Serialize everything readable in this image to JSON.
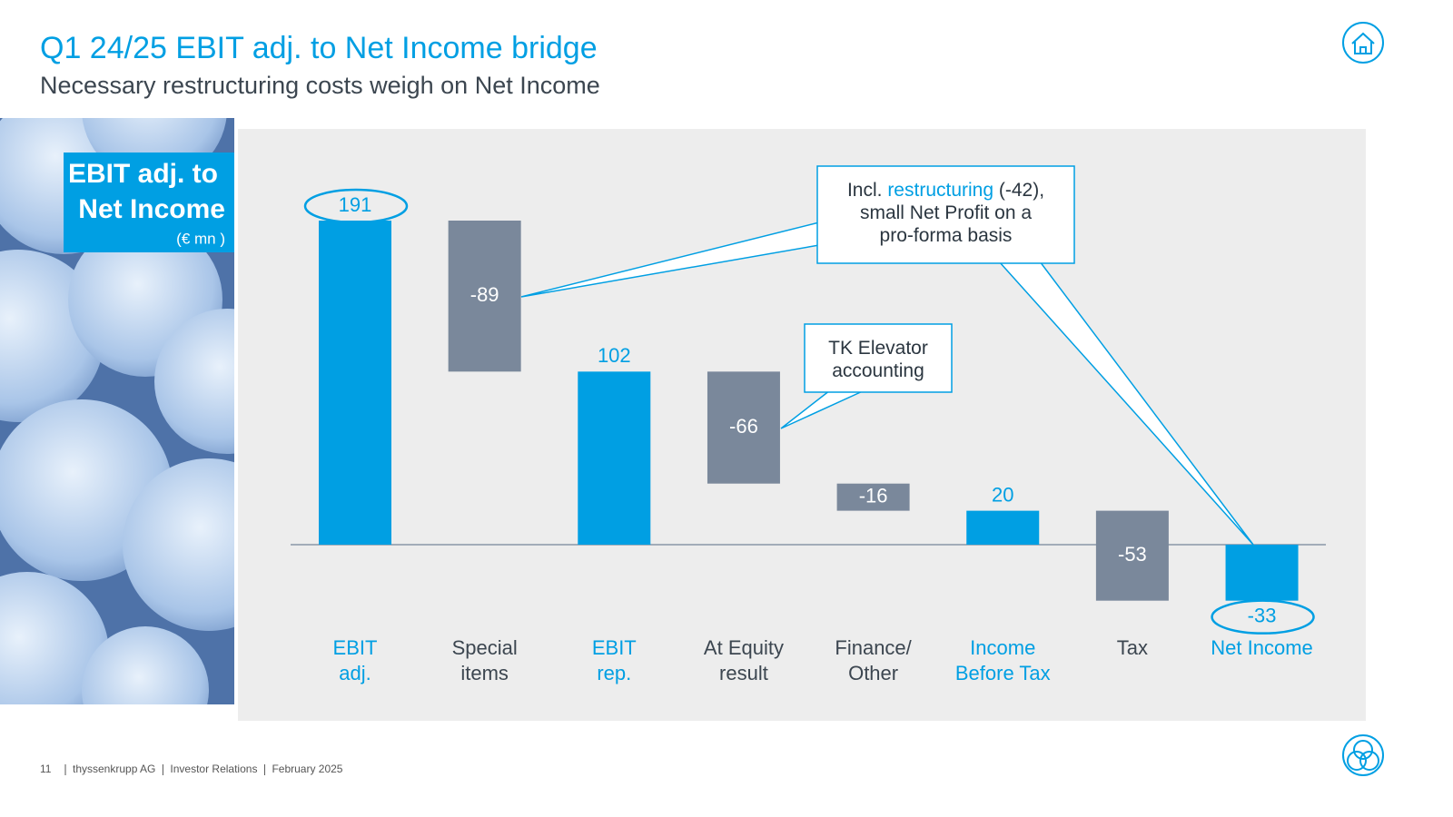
{
  "header": {
    "title": "Q1 24/25 EBIT adj. to Net Income bridge",
    "subtitle": "Necessary restructuring costs weigh on Net Income"
  },
  "side_label": {
    "lines": [
      "EBIT adj. to",
      "Net Income"
    ],
    "unit": "(€ mn )"
  },
  "chart_data": {
    "type": "waterfall",
    "categories": [
      [
        "EBIT",
        "adj."
      ],
      [
        "Special",
        "items"
      ],
      [
        "EBIT",
        "rep."
      ],
      [
        "At Equity",
        "result"
      ],
      [
        "Finance/",
        "Other"
      ],
      [
        "Income",
        "Before Tax"
      ],
      [
        "Tax"
      ],
      [
        "Net Income"
      ]
    ],
    "values": [
      191,
      -89,
      102,
      -66,
      -16,
      20,
      -53,
      -33
    ],
    "kinds": [
      "total",
      "delta",
      "total",
      "delta",
      "delta",
      "total",
      "delta",
      "total"
    ],
    "colors": {
      "total": "#009fe3",
      "delta": "#7a889b"
    },
    "annotations": [
      {
        "lines": [
          [
            "Incl. ",
            "restructuring",
            " (-42),"
          ],
          [
            "small Net Profit on a"
          ],
          [
            "pro-forma basis"
          ]
        ]
      },
      {
        "lines": [
          [
            "TK Elevator"
          ],
          [
            "accounting"
          ]
        ]
      }
    ]
  },
  "footer": {
    "page": "11",
    "items": [
      "thyssenkrupp AG",
      "Investor Relations",
      "February 2025"
    ]
  }
}
